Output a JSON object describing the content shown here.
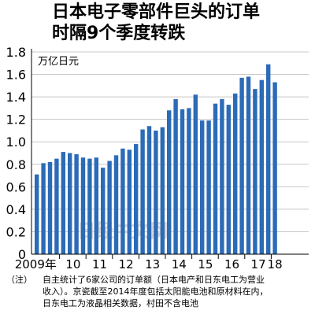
{
  "title_lines": [
    "日本电子零部件巨头的订单",
    "时隔9个季度转跌"
  ],
  "watermark": "日经中文网",
  "note": {
    "tag": "（注）",
    "lines": [
      "自主统计了6家公司的订单额（日本电产和日东电工为营业",
      "收入）。京瓷截至2014年度包括太阳能电池和原材料在内，",
      "日东电工为液晶相关数据，村田不含电池"
    ]
  },
  "colors": {
    "bar": "#2b6bb7",
    "grid": "#c8c8c8",
    "axis": "#000000",
    "watermark": "#e8e8e8"
  },
  "chart_data": {
    "type": "bar",
    "unit_label": "万亿日元",
    "ylim": [
      0,
      1.8
    ],
    "y_ticks": [
      0,
      0.2,
      0.4,
      0.6,
      0.8,
      1.0,
      1.2,
      1.4,
      1.6,
      1.8
    ],
    "y_tick_labels": [
      "0",
      "0.2",
      "0.4",
      "0.6",
      "0.8",
      "1.0",
      "1.2",
      "1.4",
      "1.6",
      "1.8"
    ],
    "x_year_labels": [
      "2009年",
      "10",
      "11",
      "12",
      "13",
      "14",
      "15",
      "16",
      "17",
      "18"
    ],
    "grid": true,
    "values": [
      0.71,
      0.81,
      0.82,
      0.85,
      0.91,
      0.9,
      0.89,
      0.86,
      0.85,
      0.86,
      0.77,
      0.83,
      0.88,
      0.94,
      0.93,
      0.98,
      1.11,
      1.14,
      1.1,
      1.13,
      1.28,
      1.38,
      1.29,
      1.3,
      1.42,
      1.19,
      1.19,
      1.34,
      1.38,
      1.33,
      1.43,
      1.57,
      1.58,
      1.47,
      1.55,
      1.69,
      1.53
    ]
  }
}
